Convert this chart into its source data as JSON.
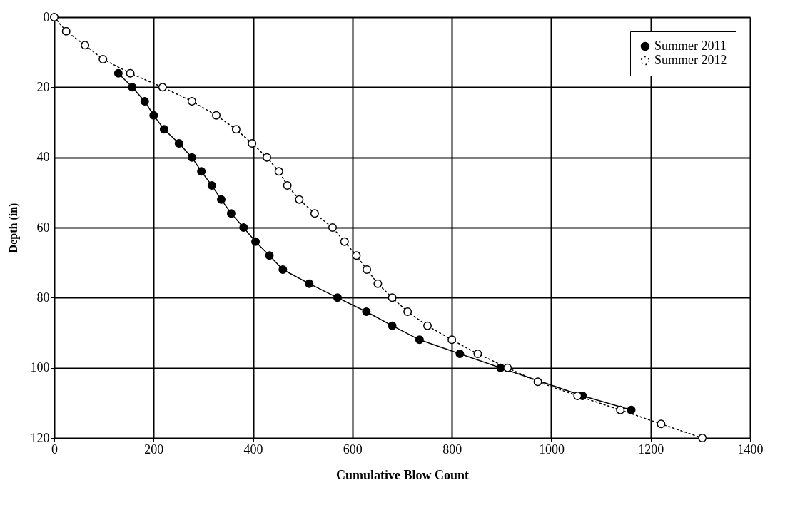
{
  "chart_data": {
    "type": "line",
    "xlabel": "Cumulative Blow Count",
    "ylabel": "Depth (in)",
    "xlim": [
      0,
      1400
    ],
    "xticks": [
      0,
      200,
      400,
      600,
      800,
      1000,
      1200,
      1400
    ],
    "ylim": [
      120,
      0
    ],
    "yticks": [
      0,
      20,
      40,
      60,
      80,
      100,
      120
    ],
    "grid": true,
    "legend": "top right",
    "marker": "circle",
    "series": [
      {
        "name": "Summer 2011",
        "color": "#000000",
        "line_style": "solid",
        "x": [
          129,
          157,
          182,
          200,
          221,
          251,
          277,
          296,
          317,
          336,
          356,
          381,
          405,
          433,
          460,
          513,
          570,
          628,
          680,
          735,
          816,
          898,
          1063,
          1161
        ],
        "values": [
          16,
          20,
          24,
          28,
          32,
          36,
          40,
          44,
          48,
          52,
          56,
          60,
          64,
          68,
          72,
          76,
          80,
          84,
          88,
          92,
          96,
          100,
          108,
          112
        ]
      },
      {
        "name": "Summer 2012",
        "color": "#000000",
        "line_style": "dotted",
        "x": [
          0,
          24,
          62,
          98,
          153,
          218,
          277,
          326,
          366,
          398,
          428,
          452,
          469,
          493,
          524,
          560,
          584,
          608,
          629,
          651,
          680,
          711,
          751,
          800,
          852,
          912,
          973,
          1053,
          1139,
          1221,
          1304
        ],
        "values": [
          0,
          4,
          8,
          12,
          16,
          20,
          24,
          28,
          32,
          36,
          40,
          44,
          48,
          52,
          56,
          60,
          64,
          68,
          72,
          76,
          80,
          84,
          88,
          92,
          96,
          100,
          104,
          108,
          112,
          116,
          120
        ]
      }
    ]
  }
}
